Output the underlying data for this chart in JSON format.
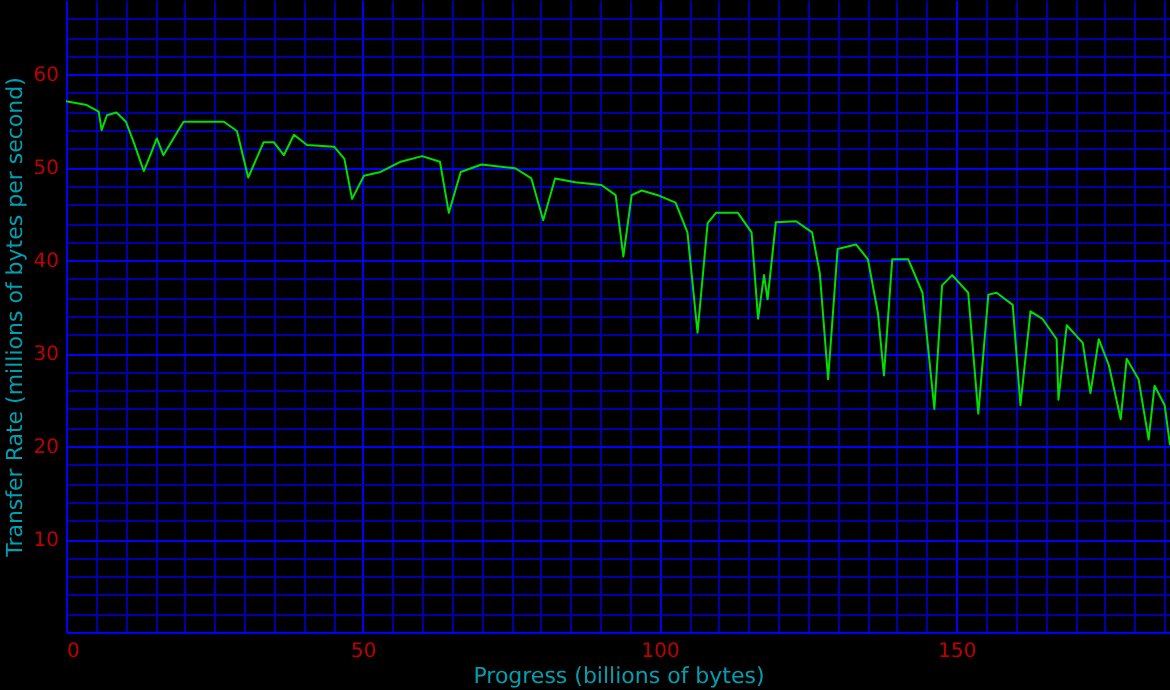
{
  "chart_data": {
    "type": "line",
    "xlabel": "Progress (billions of bytes)",
    "ylabel": "Transfer Rate (millions of bytes per second)",
    "xlim": [
      0,
      186
    ],
    "ylim": [
      0,
      68
    ],
    "grid": true,
    "xticks": [
      0,
      {
        "value": 5,
        "label": null
      },
      {
        "value": 10,
        "label": null
      },
      {
        "value": 15,
        "label": null
      },
      {
        "value": 20,
        "label": null
      },
      {
        "value": 25,
        "label": null
      },
      {
        "value": 30,
        "label": null
      },
      {
        "value": 35,
        "label": null
      },
      {
        "value": 40,
        "label": null
      },
      {
        "value": 45,
        "label": null
      },
      50,
      {
        "value": 55,
        "label": null
      },
      {
        "value": 60,
        "label": null
      },
      {
        "value": 65,
        "label": null
      },
      {
        "value": 70,
        "label": null
      },
      {
        "value": 75,
        "label": null
      },
      {
        "value": 80,
        "label": null
      },
      {
        "value": 85,
        "label": null
      },
      {
        "value": 90,
        "label": null
      },
      {
        "value": 95,
        "label": null
      },
      100,
      {
        "value": 105,
        "label": null
      },
      {
        "value": 110,
        "label": null
      },
      {
        "value": 115,
        "label": null
      },
      {
        "value": 120,
        "label": null
      },
      {
        "value": 125,
        "label": null
      },
      {
        "value": 130,
        "label": null
      },
      {
        "value": 135,
        "label": null
      },
      {
        "value": 140,
        "label": null
      },
      {
        "value": 145,
        "label": null
      },
      150,
      {
        "value": 155,
        "label": null
      },
      {
        "value": 160,
        "label": null
      },
      {
        "value": 165,
        "label": null
      },
      {
        "value": 170,
        "label": null
      },
      {
        "value": 175,
        "label": null
      },
      {
        "value": 180,
        "label": null
      },
      {
        "value": 185,
        "label": null
      }
    ],
    "yticks": [
      {
        "value": 2,
        "label": null
      },
      {
        "value": 4,
        "label": null
      },
      {
        "value": 6,
        "label": null
      },
      {
        "value": 8,
        "label": null
      },
      10,
      {
        "value": 12,
        "label": null
      },
      {
        "value": 14,
        "label": null
      },
      {
        "value": 16,
        "label": null
      },
      {
        "value": 18,
        "label": null
      },
      20,
      {
        "value": 22,
        "label": null
      },
      {
        "value": 24,
        "label": null
      },
      {
        "value": 26,
        "label": null
      },
      {
        "value": 28,
        "label": null
      },
      30,
      {
        "value": 32,
        "label": null
      },
      {
        "value": 34,
        "label": null
      },
      {
        "value": 36,
        "label": null
      },
      {
        "value": 38,
        "label": null
      },
      40,
      {
        "value": 42,
        "label": null
      },
      {
        "value": 44,
        "label": null
      },
      {
        "value": 46,
        "label": null
      },
      {
        "value": 48,
        "label": null
      },
      50,
      {
        "value": 52,
        "label": null
      },
      {
        "value": 54,
        "label": null
      },
      {
        "value": 56,
        "label": null
      },
      {
        "value": 58,
        "label": null
      },
      60,
      {
        "value": 62,
        "label": null
      },
      {
        "value": 64,
        "label": null
      },
      {
        "value": 66,
        "label": null
      }
    ],
    "series": [
      {
        "color": "#00e000",
        "x": [
          0,
          3.5,
          5.5,
          6,
          6.9,
          8.5,
          10.1,
          11.4,
          13.1,
          14.2,
          15.3,
          16.4,
          18.1,
          19.8,
          22.6,
          26.6,
          28.8,
          30.7,
          33.3,
          35,
          36.7,
          38.4,
          40.6,
          45.2,
          46.9,
          48.2,
          50.2,
          53,
          56.4,
          60,
          63,
          64.5,
          66.5,
          70,
          75.7,
          78.4,
          80.4,
          82.4,
          85.8,
          90.2,
          92.6,
          93.9,
          95.3,
          97,
          99.7,
          102.7,
          104.7,
          106.4,
          108.1,
          109.5,
          113.2,
          115.5,
          116.6,
          117.6,
          118.2,
          119.6,
          123,
          125.7,
          127,
          128.4,
          130,
          133.1,
          135.1,
          136.8,
          137.8,
          139.2,
          141.9,
          144.3,
          146.3,
          147.6,
          149.3,
          152,
          153.7,
          155.4,
          156.8,
          159.5,
          160.8,
          162.5,
          164.5,
          166.9,
          167.2,
          168.6,
          171.3,
          172.6,
          174,
          175.7,
          177.7,
          178.7,
          180.7,
          182.4,
          183.4,
          185.1,
          186
        ],
        "values": [
          57.1,
          56.7,
          56,
          54,
          55.6,
          55.9,
          54.9,
          52.7,
          49.6,
          51.3,
          53.1,
          51.3,
          53.1,
          54.9,
          54.9,
          54.9,
          53.9,
          48.9,
          52.7,
          52.7,
          51.3,
          53.5,
          52.4,
          52.2,
          50.9,
          46.6,
          49.1,
          49.5,
          50.6,
          51.2,
          50.6,
          45.1,
          49.5,
          50.3,
          49.9,
          48.8,
          44.3,
          48.8,
          48.4,
          48.1,
          47,
          40.4,
          47,
          47.5,
          47,
          46.2,
          43,
          32.2,
          44,
          45.1,
          45.1,
          43,
          33.7,
          38.4,
          35.8,
          44.1,
          44.2,
          43,
          38.6,
          27.2,
          41.2,
          41.7,
          40.1,
          34.3,
          27.6,
          40.1,
          40.1,
          36.5,
          24,
          37.3,
          38.4,
          36.5,
          23.5,
          36.3,
          36.5,
          35.2,
          24.4,
          34.5,
          33.7,
          31.5,
          25,
          33,
          31.1,
          25.7,
          31.5,
          28.7,
          22.9,
          29.4,
          27.2,
          20.7,
          26.5,
          24.4,
          20.1
        ]
      }
    ]
  }
}
